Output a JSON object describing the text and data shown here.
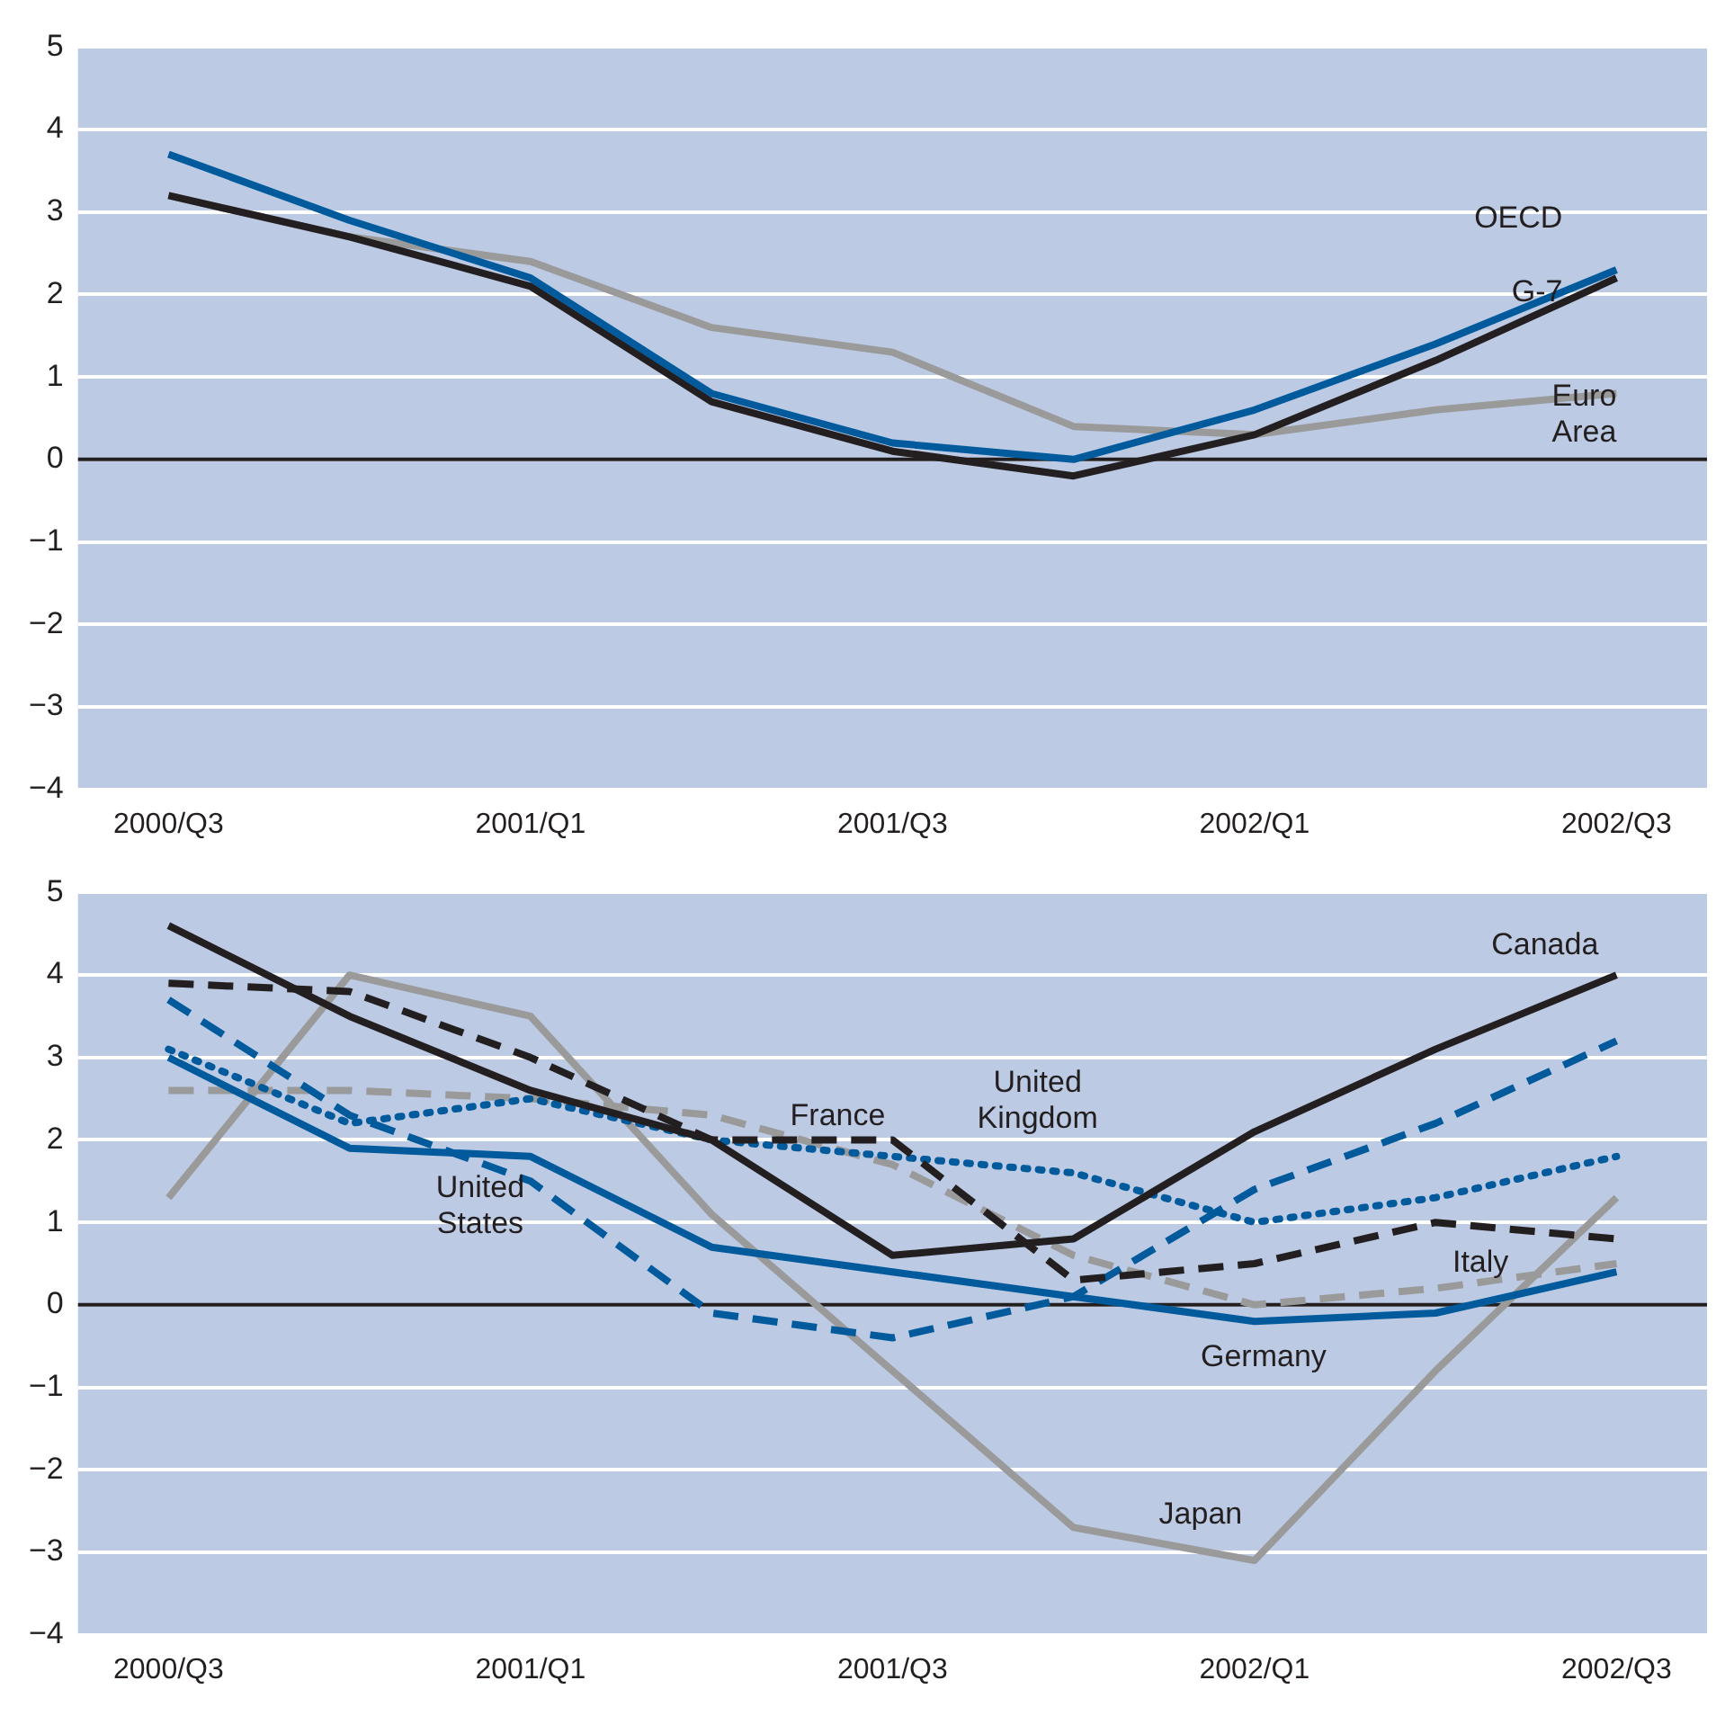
{
  "chart_data": [
    {
      "type": "line",
      "categories": [
        "2000/Q3",
        null,
        "2001/Q1",
        null,
        "2001/Q3",
        null,
        "2002/Q1",
        null,
        "2002/Q3"
      ],
      "ylim": [
        -4,
        5
      ],
      "yticks": [
        -4,
        -3,
        -2,
        -1,
        0,
        1,
        2,
        3,
        4,
        5
      ],
      "grid": "y",
      "legend": false,
      "marker": "none",
      "ref_lines": [
        {
          "axis": "y",
          "value": 0,
          "color": "#231f20"
        }
      ],
      "series": [
        {
          "name": "OECD",
          "color": "#005a9c",
          "line_style": "solid",
          "values": [
            3.7,
            2.9,
            2.2,
            0.8,
            0.2,
            0.0,
            0.6,
            1.4,
            2.3
          ]
        },
        {
          "name": "G-7",
          "color": "#231f20",
          "line_style": "solid",
          "values": [
            3.2,
            2.7,
            2.1,
            0.7,
            0.1,
            -0.2,
            0.3,
            1.2,
            2.2
          ]
        },
        {
          "name": "Euro Area",
          "color": "#9a9a9a",
          "line_style": "solid",
          "values": [
            3.2,
            2.7,
            2.4,
            1.6,
            1.3,
            0.4,
            0.3,
            0.6,
            0.8
          ]
        }
      ]
    },
    {
      "type": "line",
      "categories": [
        "2000/Q3",
        null,
        "2001/Q1",
        null,
        "2001/Q3",
        null,
        "2002/Q1",
        null,
        "2002/Q3"
      ],
      "ylim": [
        -4,
        5
      ],
      "yticks": [
        -4,
        -3,
        -2,
        -1,
        0,
        1,
        2,
        3,
        4,
        5
      ],
      "grid": "y",
      "legend": false,
      "marker": "none",
      "ref_lines": [
        {
          "axis": "y",
          "value": 0,
          "color": "#231f20"
        }
      ],
      "series": [
        {
          "name": "Canada",
          "color": "#231f20",
          "line_style": "solid",
          "values": [
            4.6,
            3.5,
            2.6,
            2.0,
            0.6,
            0.8,
            2.1,
            3.1,
            4.0
          ]
        },
        {
          "name": "France",
          "color": "#231f20",
          "line_style": "dashed",
          "values": [
            3.9,
            3.8,
            3.0,
            2.0,
            2.0,
            0.3,
            0.5,
            1.0,
            0.8
          ]
        },
        {
          "name": "United Kingdom",
          "color": "#005a9c",
          "line_style": "dotted",
          "values": [
            3.1,
            2.2,
            2.5,
            2.0,
            1.8,
            1.6,
            1.0,
            1.3,
            1.8
          ]
        },
        {
          "name": "United States",
          "color": "#005a9c",
          "line_style": "dashed",
          "values": [
            3.7,
            2.3,
            1.5,
            -0.1,
            -0.4,
            0.1,
            1.4,
            2.2,
            3.2
          ]
        },
        {
          "name": "Germany",
          "color": "#005a9c",
          "line_style": "solid",
          "values": [
            3.0,
            1.9,
            1.8,
            0.7,
            0.4,
            0.1,
            -0.2,
            -0.1,
            0.4
          ]
        },
        {
          "name": "Italy",
          "color": "#9a9a9a",
          "line_style": "dashed",
          "values": [
            2.6,
            2.6,
            2.5,
            2.3,
            1.7,
            0.6,
            0.0,
            0.2,
            0.5
          ]
        },
        {
          "name": "Japan",
          "color": "#9a9a9a",
          "line_style": "solid",
          "values": [
            1.3,
            4.0,
            3.5,
            1.1,
            -0.8,
            -2.7,
            -3.1,
            -0.8,
            1.3
          ]
        }
      ]
    }
  ]
}
